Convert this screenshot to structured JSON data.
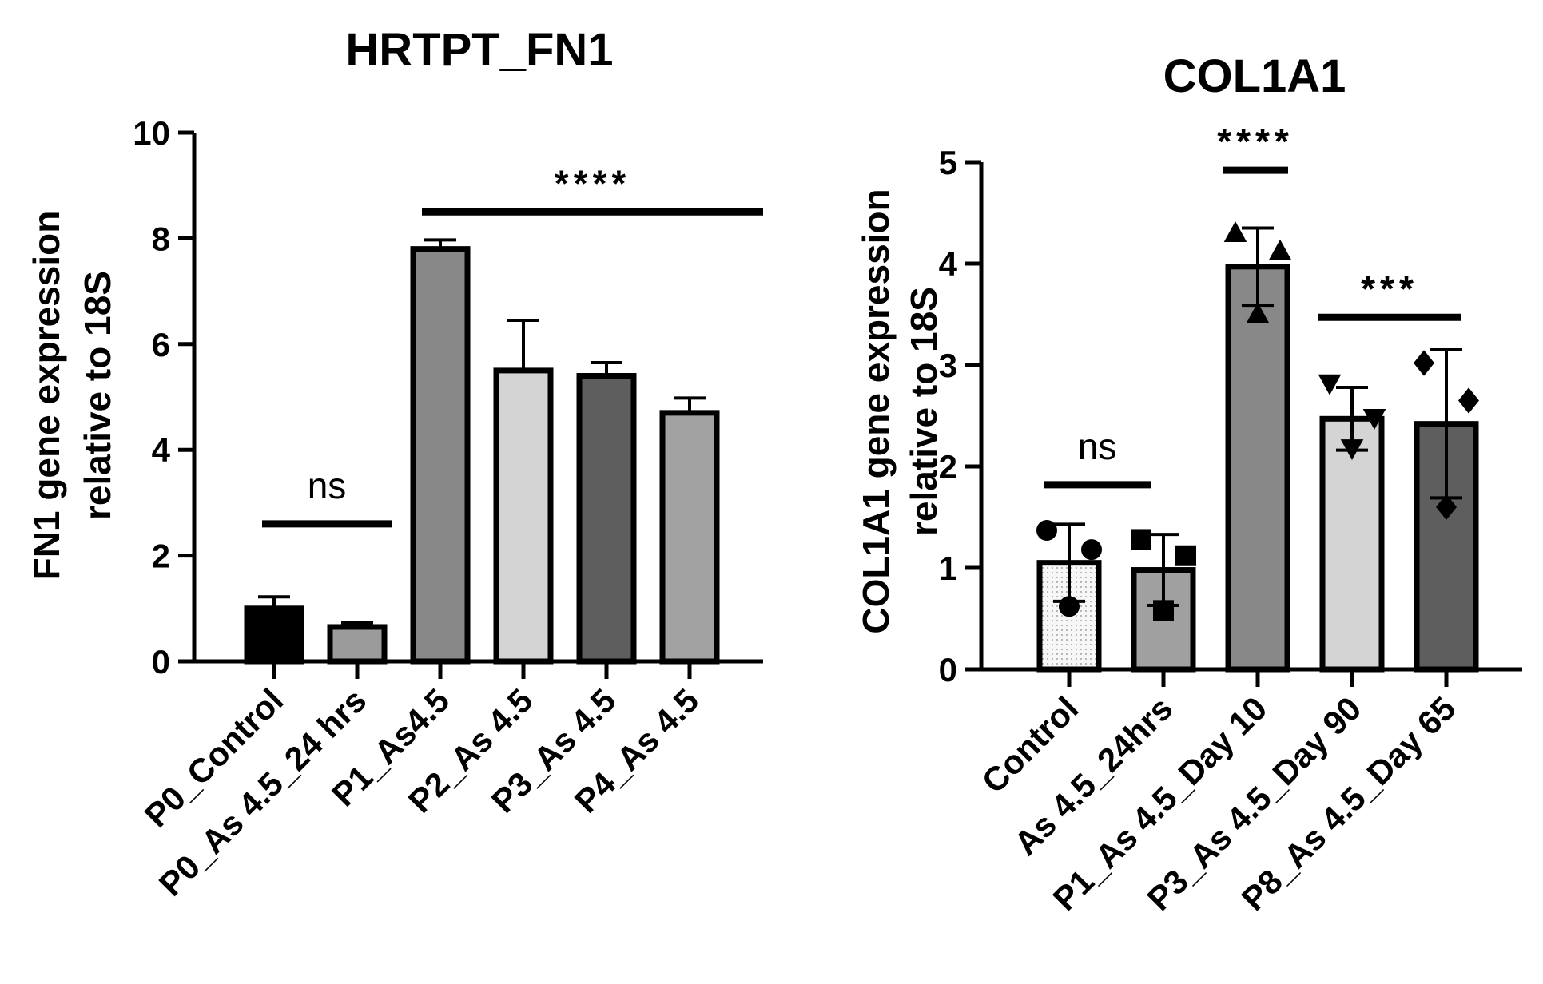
{
  "chart_data": [
    {
      "type": "bar",
      "title": "HRTPT_FN1",
      "ylabel": [
        "FN1 gene expression",
        "relative to 18S"
      ],
      "ylim": [
        0,
        10
      ],
      "yticks": [
        0,
        2,
        4,
        6,
        8,
        10
      ],
      "categories": [
        "P0_Control",
        "P0_As 4.5_24 hrs",
        "P1_As4.5",
        "P2_As 4.5",
        "P3_As 4.5",
        "P4_As 4.5"
      ],
      "values": [
        1.0,
        0.65,
        7.8,
        5.5,
        5.4,
        4.7
      ],
      "errors": [
        0.22,
        0.08,
        0.17,
        0.95,
        0.25,
        0.28
      ],
      "colors": [
        "#000000",
        "#9b9b9b",
        "#888888",
        "#d4d4d4",
        "#5e5e5e",
        "#a2a2a2"
      ],
      "annotations": [
        {
          "text": "ns",
          "from": 0,
          "to": 1,
          "y": 2.6
        },
        {
          "text": "****",
          "from": 2,
          "to": 5,
          "y": 8.5
        }
      ]
    },
    {
      "type": "bar",
      "title": "COL1A1",
      "ylabel": [
        "COL1A1 gene expression",
        "relative to 18S"
      ],
      "ylim": [
        0,
        5
      ],
      "yticks": [
        0,
        1,
        2,
        3,
        4,
        5
      ],
      "categories": [
        "Control",
        "As 4.5_24hrs",
        "P1_As 4.5_Day 10",
        "P3_As 4.5_Day 90",
        "P8_As 4.5_Day 65"
      ],
      "values": [
        1.05,
        0.98,
        3.97,
        2.47,
        2.42
      ],
      "errors": [
        0.38,
        0.35,
        0.38,
        0.31,
        0.73
      ],
      "colors": [
        "#f2f2f2",
        "#a0a0a0",
        "#888888",
        "#d4d4d4",
        "#5e5e5e"
      ],
      "markers": [
        "circle",
        "square",
        "triangle-up",
        "triangle-down",
        "diamond"
      ],
      "points": [
        [
          1.37,
          1.18,
          0.62
        ],
        [
          1.28,
          1.12,
          0.58
        ],
        [
          4.3,
          4.12,
          3.5
        ],
        [
          2.82,
          2.48,
          2.18
        ],
        [
          3.02,
          2.65,
          1.6
        ]
      ],
      "annotations": [
        {
          "text": "ns",
          "from": 0,
          "to": 1,
          "y": 1.82
        },
        {
          "text": "****",
          "from": 2,
          "to": 2,
          "y": 4.92
        },
        {
          "text": "***",
          "from": 3,
          "to": 4,
          "y": 3.47
        }
      ]
    }
  ]
}
